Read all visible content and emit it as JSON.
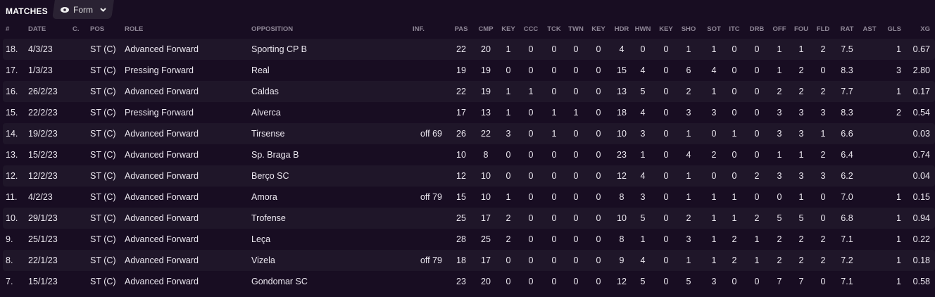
{
  "header": {
    "title": "MATCHES",
    "view_label": "Form",
    "view_icon": "eye-icon"
  },
  "columns": [
    "#",
    "DATE",
    "C.",
    "POS",
    "ROLE",
    "OPPOSITION",
    "INF.",
    "PAS",
    "CMP",
    "KEY",
    "CCC",
    "TCK",
    "TWN",
    "KEY",
    "HDR",
    "HWN",
    "KEY",
    "SHO",
    "SOT",
    "ITC",
    "DRB",
    "OFF",
    "FOU",
    "FLD",
    "RAT",
    "AST",
    "GLS",
    "XG"
  ],
  "rows": [
    [
      "18.",
      "4/3/23",
      "",
      "ST (C)",
      "Advanced Forward",
      "Sporting CP B",
      "",
      "22",
      "20",
      "1",
      "0",
      "0",
      "0",
      "0",
      "4",
      "0",
      "0",
      "1",
      "1",
      "0",
      "0",
      "1",
      "1",
      "2",
      "7.5",
      "",
      "1",
      "0.67"
    ],
    [
      "17.",
      "1/3/23",
      "",
      "ST (C)",
      "Pressing Forward",
      "Real",
      "",
      "19",
      "19",
      "0",
      "0",
      "0",
      "0",
      "0",
      "15",
      "4",
      "0",
      "6",
      "4",
      "0",
      "0",
      "1",
      "2",
      "0",
      "8.3",
      "",
      "3",
      "2.80"
    ],
    [
      "16.",
      "26/2/23",
      "",
      "ST (C)",
      "Advanced Forward",
      "Caldas",
      "",
      "22",
      "19",
      "1",
      "1",
      "0",
      "0",
      "0",
      "13",
      "5",
      "0",
      "2",
      "1",
      "0",
      "0",
      "2",
      "2",
      "2",
      "7.7",
      "",
      "1",
      "0.17"
    ],
    [
      "15.",
      "22/2/23",
      "",
      "ST (C)",
      "Pressing Forward",
      "Alverca",
      "",
      "17",
      "13",
      "1",
      "0",
      "1",
      "1",
      "0",
      "18",
      "4",
      "0",
      "3",
      "3",
      "0",
      "0",
      "3",
      "3",
      "3",
      "8.3",
      "",
      "2",
      "0.54"
    ],
    [
      "14.",
      "19/2/23",
      "",
      "ST (C)",
      "Advanced Forward",
      "Tirsense",
      "off 69",
      "26",
      "22",
      "3",
      "0",
      "1",
      "0",
      "0",
      "10",
      "3",
      "0",
      "1",
      "0",
      "1",
      "0",
      "3",
      "3",
      "1",
      "6.6",
      "",
      "",
      "0.03"
    ],
    [
      "13.",
      "15/2/23",
      "",
      "ST (C)",
      "Advanced Forward",
      "Sp. Braga B",
      "",
      "10",
      "8",
      "0",
      "0",
      "0",
      "0",
      "0",
      "23",
      "1",
      "0",
      "4",
      "2",
      "0",
      "0",
      "1",
      "1",
      "2",
      "6.4",
      "",
      "",
      "0.74"
    ],
    [
      "12.",
      "12/2/23",
      "",
      "ST (C)",
      "Advanced Forward",
      "Berço SC",
      "",
      "12",
      "10",
      "0",
      "0",
      "0",
      "0",
      "0",
      "12",
      "4",
      "0",
      "1",
      "0",
      "0",
      "2",
      "3",
      "3",
      "3",
      "6.2",
      "",
      "",
      "0.04"
    ],
    [
      "11.",
      "4/2/23",
      "",
      "ST (C)",
      "Advanced Forward",
      "Amora",
      "off 79",
      "15",
      "10",
      "1",
      "0",
      "0",
      "0",
      "0",
      "8",
      "3",
      "0",
      "1",
      "1",
      "1",
      "0",
      "0",
      "1",
      "0",
      "7.0",
      "",
      "1",
      "0.15"
    ],
    [
      "10.",
      "29/1/23",
      "",
      "ST (C)",
      "Advanced Forward",
      "Trofense",
      "",
      "25",
      "17",
      "2",
      "0",
      "0",
      "0",
      "0",
      "10",
      "5",
      "0",
      "2",
      "1",
      "1",
      "2",
      "5",
      "5",
      "0",
      "6.8",
      "",
      "1",
      "0.94"
    ],
    [
      "9.",
      "25/1/23",
      "",
      "ST (C)",
      "Advanced Forward",
      "Leça",
      "",
      "28",
      "25",
      "2",
      "0",
      "0",
      "0",
      "0",
      "8",
      "1",
      "0",
      "3",
      "1",
      "2",
      "1",
      "2",
      "2",
      "2",
      "7.1",
      "",
      "1",
      "0.22"
    ],
    [
      "8.",
      "22/1/23",
      "",
      "ST (C)",
      "Advanced Forward",
      "Vizela",
      "off 79",
      "18",
      "17",
      "0",
      "0",
      "0",
      "0",
      "0",
      "9",
      "4",
      "0",
      "1",
      "1",
      "2",
      "1",
      "2",
      "2",
      "2",
      "7.2",
      "",
      "1",
      "0.18"
    ],
    [
      "7.",
      "15/1/23",
      "",
      "ST (C)",
      "Advanced Forward",
      "Gondomar SC",
      "",
      "23",
      "20",
      "0",
      "0",
      "0",
      "0",
      "0",
      "12",
      "5",
      "0",
      "5",
      "3",
      "0",
      "0",
      "7",
      "7",
      "0",
      "7.1",
      "",
      "1",
      "0.58"
    ]
  ]
}
